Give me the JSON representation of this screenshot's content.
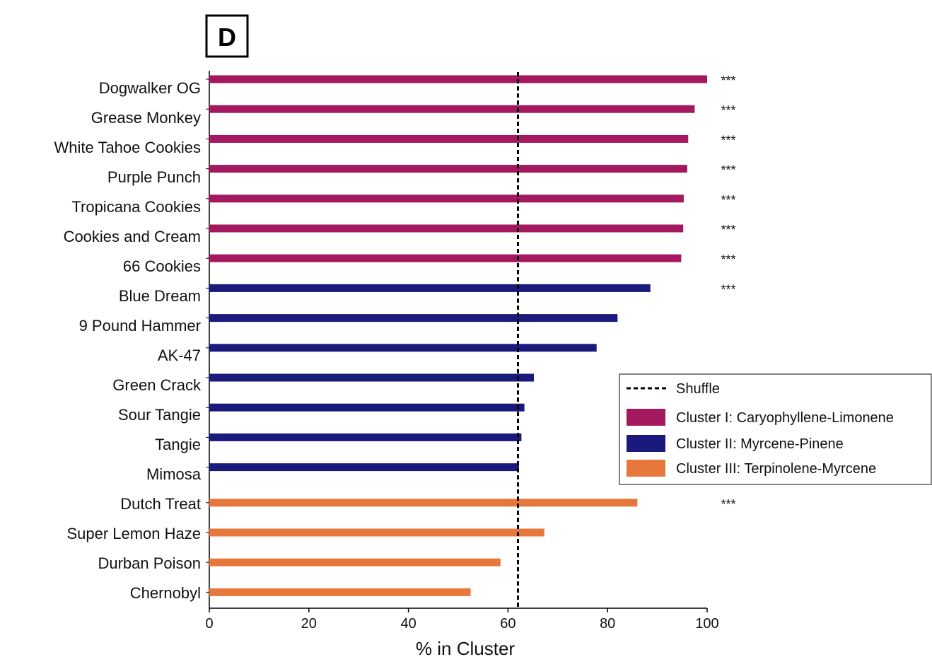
{
  "panel_label": "D",
  "chart_data": {
    "type": "bar",
    "orientation": "horizontal",
    "xlabel": "% in Cluster",
    "ylabel": "",
    "xlim": [
      0,
      100
    ],
    "xticks": [
      0,
      20,
      40,
      60,
      80,
      100
    ],
    "grid": false,
    "legend_position": "right",
    "shuffle_line": {
      "name": "Shuffle",
      "x": 62,
      "style": "dashed",
      "color": "#000000"
    },
    "clusters": [
      {
        "name": "Cluster I: Caryophyllene-Limonene",
        "color": "#a3185f"
      },
      {
        "name": "Cluster II: Myrcene-Pinene",
        "color": "#1a1a7c"
      },
      {
        "name": "Cluster III: Terpinolene-Myrcene",
        "color": "#e8773c"
      }
    ],
    "bars": [
      {
        "category": "Dogwalker OG",
        "value": 100,
        "cluster": 0,
        "significance": "***"
      },
      {
        "category": "Grease Monkey",
        "value": 97.5,
        "cluster": 0,
        "significance": "***"
      },
      {
        "category": "White Tahoe Cookies",
        "value": 96.2,
        "cluster": 0,
        "significance": "***"
      },
      {
        "category": "Purple Punch",
        "value": 96,
        "cluster": 0,
        "significance": "***"
      },
      {
        "category": "Tropicana Cookies",
        "value": 95.3,
        "cluster": 0,
        "significance": "***"
      },
      {
        "category": "Cookies and Cream",
        "value": 95.2,
        "cluster": 0,
        "significance": "***"
      },
      {
        "category": "66 Cookies",
        "value": 94.8,
        "cluster": 0,
        "significance": "***"
      },
      {
        "category": "Blue Dream",
        "value": 88.6,
        "cluster": 1,
        "significance": "***"
      },
      {
        "category": "9 Pound Hammer",
        "value": 82,
        "cluster": 1,
        "significance": ""
      },
      {
        "category": "AK-47",
        "value": 77.8,
        "cluster": 1,
        "significance": ""
      },
      {
        "category": "Green Crack",
        "value": 65.2,
        "cluster": 1,
        "significance": ""
      },
      {
        "category": "Sour Tangie",
        "value": 63.3,
        "cluster": 1,
        "significance": ""
      },
      {
        "category": "Tangie",
        "value": 62.7,
        "cluster": 1,
        "significance": ""
      },
      {
        "category": "Mimosa",
        "value": 62.2,
        "cluster": 1,
        "significance": ""
      },
      {
        "category": "Dutch Treat",
        "value": 86,
        "cluster": 2,
        "significance": "***"
      },
      {
        "category": "Super Lemon Haze",
        "value": 67.3,
        "cluster": 2,
        "significance": ""
      },
      {
        "category": "Durban Poison",
        "value": 58.5,
        "cluster": 2,
        "significance": ""
      },
      {
        "category": "Chernobyl",
        "value": 52.5,
        "cluster": 2,
        "significance": ""
      }
    ]
  }
}
